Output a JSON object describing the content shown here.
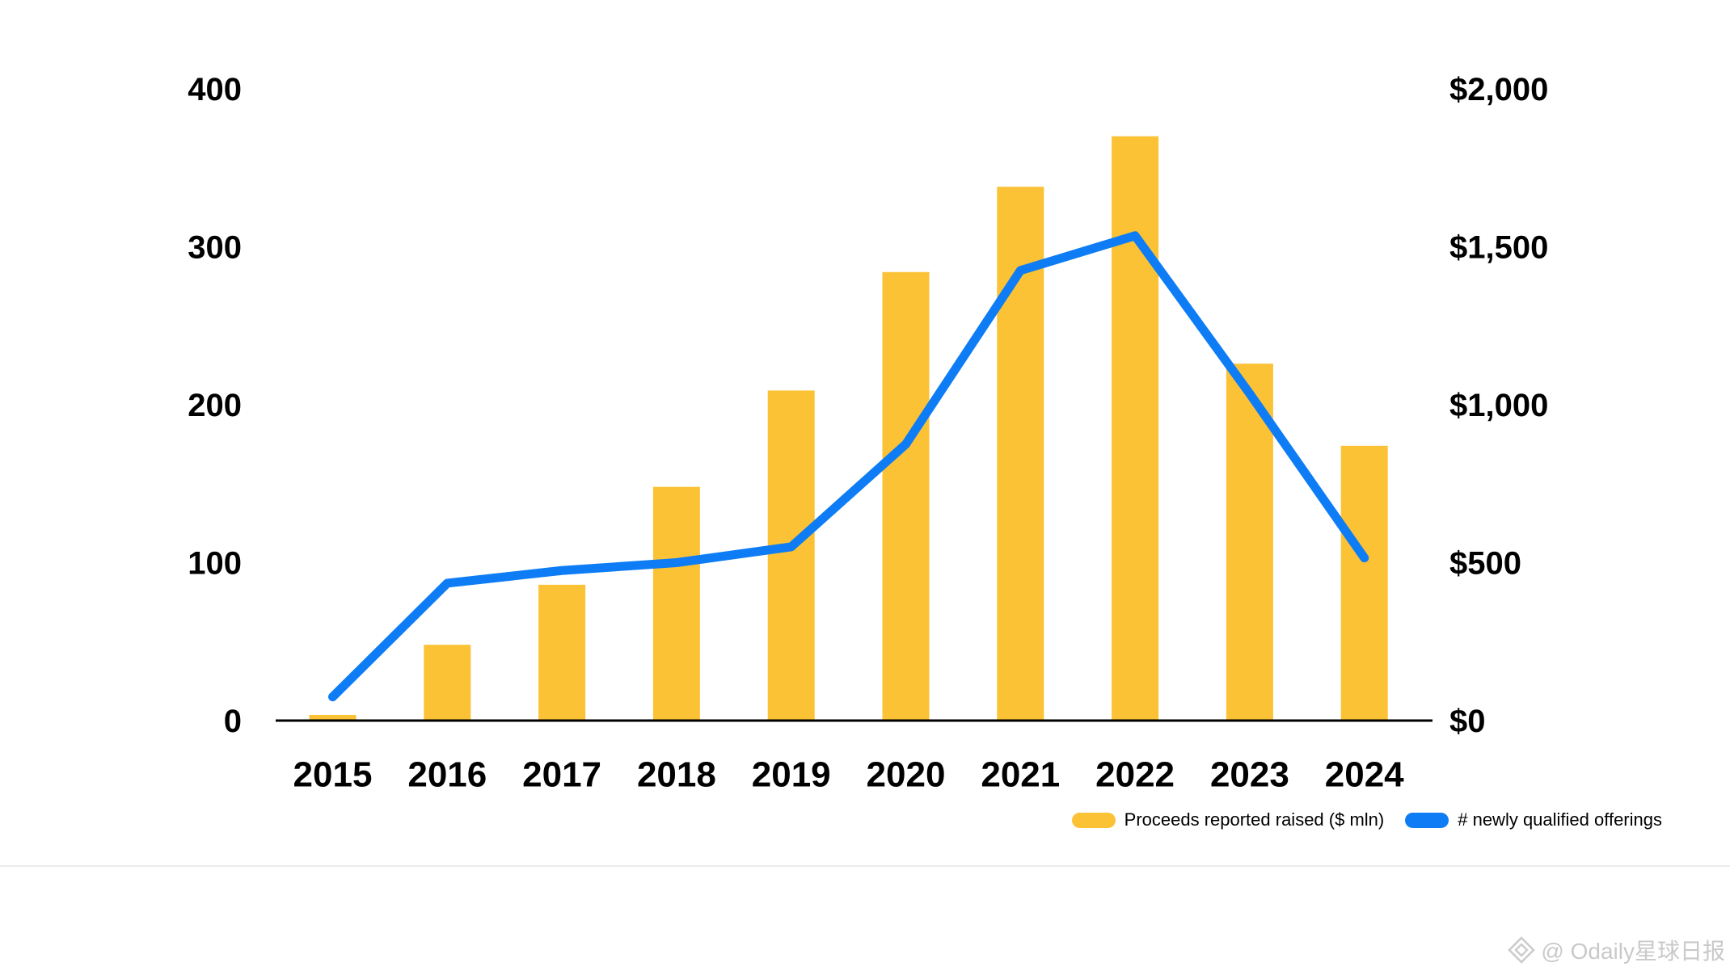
{
  "chart_data": {
    "type": "combo",
    "categories": [
      "2015",
      "2016",
      "2017",
      "2018",
      "2019",
      "2020",
      "2021",
      "2022",
      "2023",
      "2024"
    ],
    "series": [
      {
        "name": "Proceeds reported raised ($ mln)",
        "type": "bar",
        "axis": "right",
        "color": "#FCC235",
        "values": [
          18,
          240,
          430,
          740,
          1045,
          1420,
          1690,
          1850,
          1130,
          870
        ]
      },
      {
        "name": "# newly qualified offerings",
        "type": "line",
        "axis": "left",
        "color": "#0E7DF5",
        "values": [
          15,
          87,
          95,
          100,
          110,
          175,
          285,
          307,
          207,
          103
        ]
      }
    ],
    "title": "",
    "xlabel": "",
    "ylabel": "",
    "left_axis": {
      "tick_values": [
        0,
        100,
        200,
        300,
        400
      ],
      "tick_labels": [
        "0",
        "100",
        "200",
        "300",
        "400"
      ],
      "min": 0,
      "max": 400
    },
    "right_axis": {
      "tick_values": [
        0,
        500,
        1000,
        1500,
        2000
      ],
      "tick_labels": [
        "$0",
        "$500",
        "$1,000",
        "$1,500",
        "$2,000"
      ],
      "min": 0,
      "max": 2000
    },
    "grid": false,
    "legend_position": "bottom-right"
  },
  "legend": {
    "proceeds_label": "Proceeds reported raised ($ mln)",
    "offerings_label": "# newly qualified offerings"
  },
  "colors": {
    "bar": "#FCC235",
    "line": "#0E7DF5",
    "axis_line": "#000000",
    "divider": "#ebebeb",
    "watermark": "#c9c9c9"
  },
  "watermark": {
    "icon": "odaily-logo-icon",
    "text": "@ Odaily星球日报"
  }
}
